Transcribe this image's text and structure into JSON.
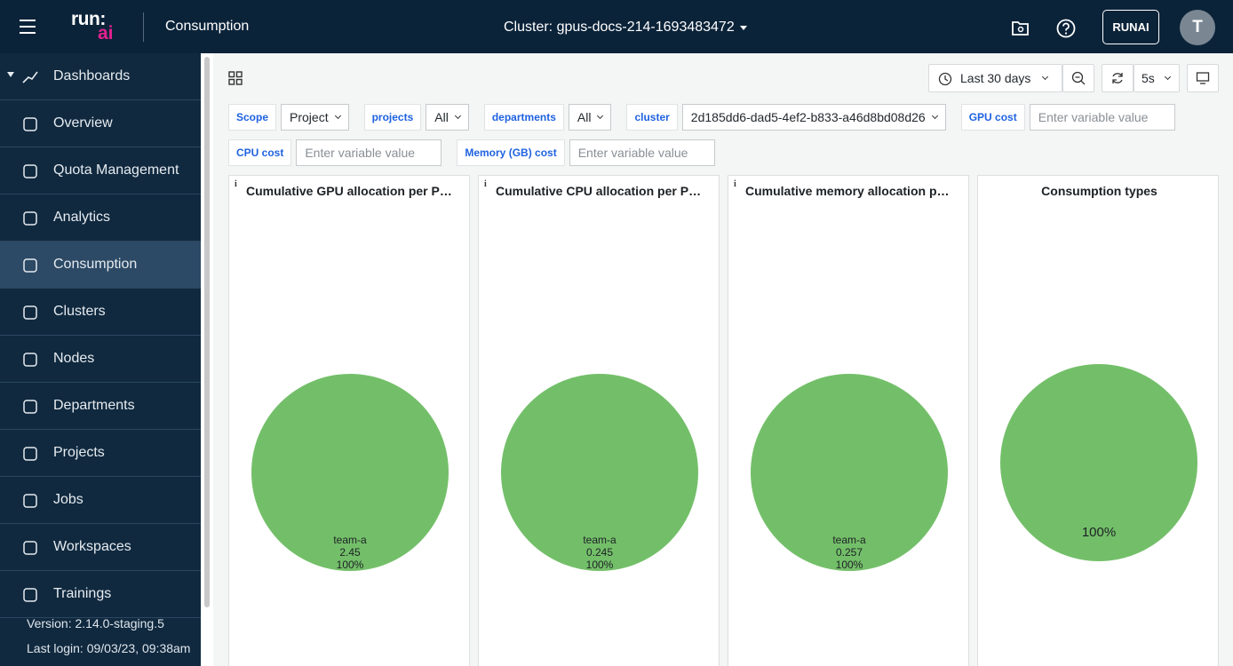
{
  "header": {
    "logo_top": "run:",
    "logo_bottom": "ai",
    "page_title": "Consumption",
    "cluster": "Cluster: gpus-docs-214-1693483472",
    "user_button": "RUNAI",
    "avatar": "T"
  },
  "sidebar": {
    "section": "Dashboards",
    "items": [
      "Overview",
      "Quota Management",
      "Analytics",
      "Consumption",
      "Clusters",
      "Nodes",
      "Departments",
      "Projects",
      "Jobs",
      "Workspaces",
      "Trainings"
    ],
    "active": "Consumption",
    "version": "Version: 2.14.0-staging.5",
    "last_login": "Last login: 09/03/23, 09:38am"
  },
  "toolbar": {
    "time_range": "Last 30 days",
    "refresh": "5s"
  },
  "variables": [
    {
      "label": "Scope",
      "value": "Project"
    },
    {
      "label": "projects",
      "value": "All"
    },
    {
      "label": "departments",
      "value": "All"
    },
    {
      "label": "cluster",
      "value": "2d185dd6-dad5-4ef2-b833-a46d8bd08d26"
    },
    {
      "label": "GPU cost",
      "placeholder": "Enter variable value"
    },
    {
      "label": "CPU cost",
      "placeholder": "Enter variable value"
    },
    {
      "label": "Memory (GB) cost",
      "placeholder": "Enter variable value"
    }
  ],
  "chart_data": [
    {
      "type": "pie",
      "title": "Cumulative GPU allocation per Proj...",
      "info": "i",
      "categories": [
        "team-a"
      ],
      "values": [
        2.45
      ],
      "percents": [
        100
      ],
      "percent_labels": [
        "100%"
      ],
      "color": "#73bf69"
    },
    {
      "type": "pie",
      "title": "Cumulative CPU allocation per Proj...",
      "info": "i",
      "categories": [
        "team-a"
      ],
      "values": [
        0.245
      ],
      "percents": [
        100
      ],
      "percent_labels": [
        "100%"
      ],
      "color": "#73bf69"
    },
    {
      "type": "pie",
      "title": "Cumulative memory allocation per ...",
      "info": "i",
      "categories": [
        "team-a"
      ],
      "values": [
        0.257
      ],
      "percents": [
        100
      ],
      "percent_labels": [
        "100%"
      ],
      "color": "#73bf69"
    },
    {
      "type": "pie",
      "title": "Consumption types",
      "categories": [
        null
      ],
      "values": [
        100
      ],
      "value_labels": [
        "100%"
      ],
      "color": "#73bf69"
    }
  ]
}
